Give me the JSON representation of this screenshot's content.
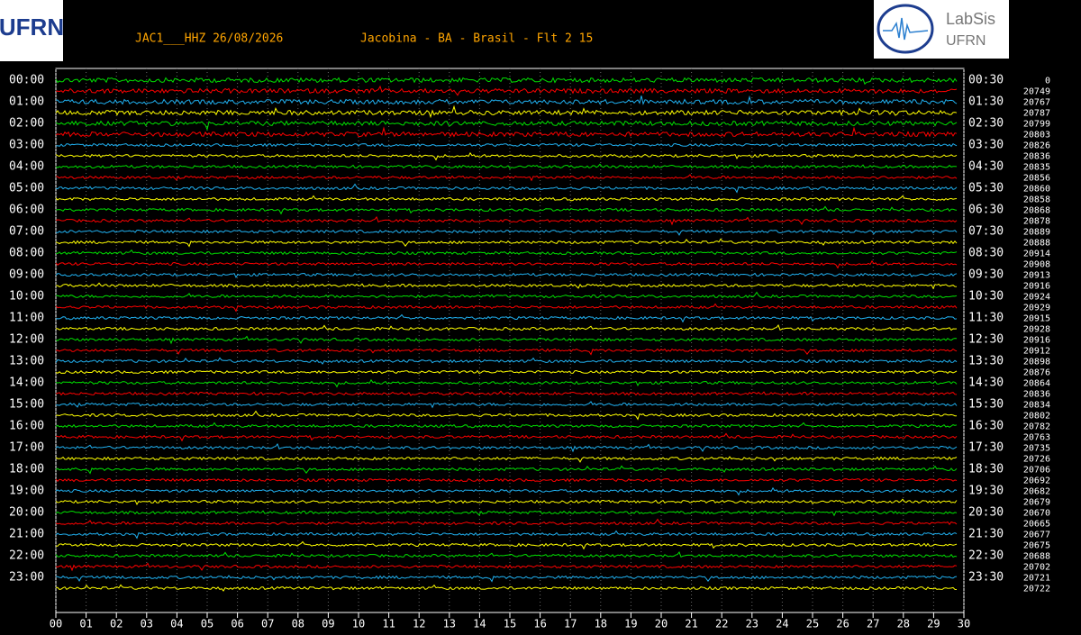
{
  "header": {
    "station": "JAC1___HHZ 26/08/2026",
    "location": "Jacobina - BA - Brasil - Flt 2 15"
  },
  "logos": {
    "left": "UFRN",
    "right_title": "LabSis",
    "right_sub": "UFRN"
  },
  "left_times": [
    "00:00",
    "01:00",
    "02:00",
    "03:00",
    "04:00",
    "05:00",
    "06:00",
    "07:00",
    "08:00",
    "09:00",
    "10:00",
    "11:00",
    "12:00",
    "13:00",
    "14:00",
    "15:00",
    "16:00",
    "17:00",
    "18:00",
    "19:00",
    "20:00",
    "21:00",
    "22:00",
    "23:00"
  ],
  "right_times": [
    "00:30",
    "01:30",
    "02:30",
    "03:30",
    "04:30",
    "05:30",
    "06:30",
    "07:30",
    "08:30",
    "09:30",
    "10:30",
    "11:30",
    "12:30",
    "13:30",
    "14:30",
    "15:30",
    "16:30",
    "17:30",
    "18:30",
    "19:30",
    "20:30",
    "21:30",
    "22:30",
    "23:30"
  ],
  "right_counts": [
    0,
    20749,
    20767,
    20787,
    20799,
    20803,
    20826,
    20836,
    20835,
    20856,
    20860,
    20858,
    20868,
    20878,
    20889,
    20888,
    20914,
    20908,
    20913,
    20916,
    20924,
    20929,
    20915,
    20928,
    20916,
    20912,
    20898,
    20876,
    20864,
    20836,
    20834,
    20802,
    20782,
    20763,
    20735,
    20726,
    20706,
    20692,
    20682,
    20679,
    20670,
    20665,
    20677,
    20675,
    20688,
    20702,
    20721,
    20722
  ],
  "x_ticks": [
    "00",
    "01",
    "02",
    "03",
    "04",
    "05",
    "06",
    "07",
    "08",
    "09",
    "10",
    "11",
    "12",
    "13",
    "14",
    "15",
    "16",
    "17",
    "18",
    "19",
    "20",
    "21",
    "22",
    "23",
    "24",
    "25",
    "26",
    "27",
    "28",
    "29",
    "30"
  ]
}
